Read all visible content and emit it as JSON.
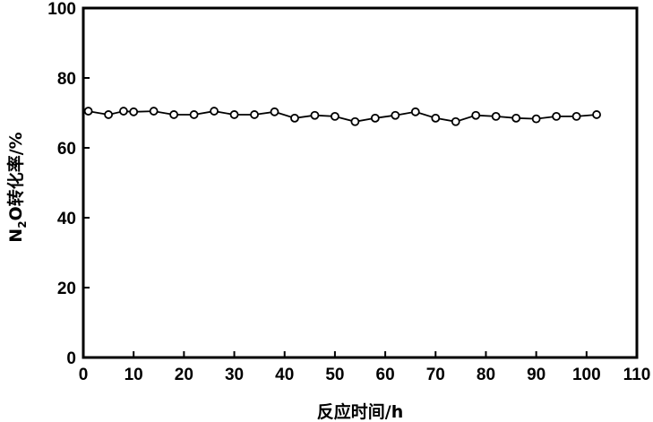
{
  "chart_data": {
    "type": "line",
    "title": "",
    "xlabel": "反应时间/h",
    "ylabel": {
      "prefix": "N",
      "subscript": "2",
      "suffix": "O转化率/%"
    },
    "xlim": [
      0,
      110
    ],
    "ylim": [
      0,
      100
    ],
    "x_ticks": [
      0,
      10,
      20,
      30,
      40,
      50,
      60,
      70,
      80,
      90,
      100,
      110
    ],
    "y_ticks": [
      0,
      20,
      40,
      60,
      80,
      100
    ],
    "grid": false,
    "marker": "open-circle",
    "series": [
      {
        "x": [
          1,
          5,
          8,
          10,
          14,
          18,
          22,
          26,
          30,
          34,
          38,
          42,
          46,
          50,
          54,
          58,
          62,
          66,
          70,
          74,
          78,
          82,
          86,
          90,
          94,
          98,
          102
        ],
        "y": [
          70.5,
          69.5,
          70.5,
          70.3,
          70.5,
          69.5,
          69.5,
          70.5,
          69.5,
          69.5,
          70.3,
          68.5,
          69.3,
          69.0,
          67.5,
          68.5,
          69.3,
          70.3,
          68.5,
          67.5,
          69.3,
          69.0,
          68.5,
          68.3,
          69.0,
          69.0,
          69.5
        ]
      }
    ]
  }
}
